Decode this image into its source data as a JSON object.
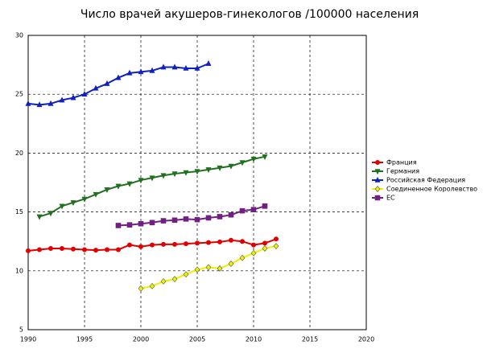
{
  "chart_data": {
    "type": "line",
    "title": "Число врачей акушеров-гинекологов /100000 населения",
    "x": [
      1990,
      1991,
      1992,
      1993,
      1994,
      1995,
      1996,
      1997,
      1998,
      1999,
      2000,
      2001,
      2002,
      2003,
      2004,
      2005,
      2006,
      2007,
      2008,
      2009,
      2010,
      2011,
      2012
    ],
    "series": [
      {
        "name": "Франция",
        "color": "#e00000",
        "marker": "circle",
        "values": [
          11.7,
          11.8,
          11.9,
          11.9,
          11.85,
          11.8,
          11.75,
          11.8,
          11.8,
          12.2,
          12.05,
          12.2,
          12.25,
          12.25,
          12.3,
          12.35,
          12.4,
          12.45,
          12.6,
          12.5,
          12.2,
          12.35,
          12.7
        ]
      },
      {
        "name": "Германия",
        "color": "#207020",
        "marker": "triangle-down",
        "values": [
          null,
          14.6,
          14.9,
          15.5,
          15.8,
          16.1,
          16.5,
          16.9,
          17.2,
          17.4,
          17.7,
          17.9,
          18.1,
          18.25,
          18.35,
          18.45,
          18.6,
          18.75,
          18.9,
          19.2,
          19.5,
          19.7,
          null
        ]
      },
      {
        "name": "Российская Федерация",
        "color": "#1020c0",
        "marker": "triangle-up",
        "values": [
          24.2,
          24.1,
          24.2,
          24.5,
          24.7,
          25.0,
          25.5,
          25.9,
          26.4,
          26.8,
          26.9,
          27.0,
          27.3,
          27.3,
          27.2,
          27.2,
          27.6,
          null,
          null,
          null,
          null,
          null,
          null
        ]
      },
      {
        "name": "Соединенное Королевство",
        "color": "#f0f000",
        "marker": "diamond",
        "values": [
          null,
          null,
          null,
          null,
          null,
          null,
          null,
          null,
          null,
          null,
          8.5,
          8.7,
          9.1,
          9.3,
          9.7,
          10.1,
          10.3,
          10.2,
          10.6,
          11.1,
          11.5,
          11.9,
          12.1
        ]
      },
      {
        "name": "ЕС",
        "color": "#702080",
        "marker": "square",
        "values": [
          null,
          null,
          null,
          null,
          null,
          null,
          null,
          null,
          13.85,
          13.9,
          14.0,
          14.1,
          14.25,
          14.3,
          14.4,
          14.35,
          14.5,
          14.6,
          14.75,
          15.1,
          15.2,
          15.5,
          null
        ]
      }
    ],
    "xlim": [
      1990,
      2020
    ],
    "xticks": [
      1990,
      1995,
      2000,
      2005,
      2010,
      2015,
      2020
    ],
    "ylim": [
      5,
      30
    ],
    "yticks": [
      5,
      10,
      15,
      20,
      25,
      30
    ],
    "grid": true,
    "legend": "right"
  }
}
